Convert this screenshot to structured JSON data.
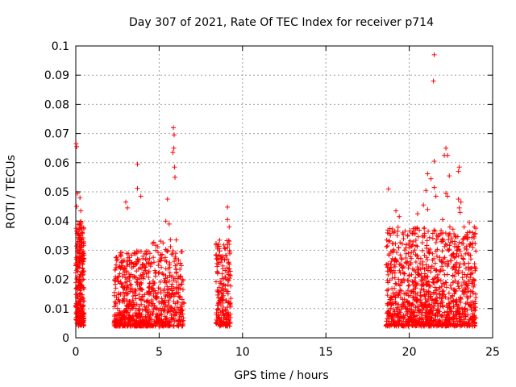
{
  "chart_data": {
    "type": "scatter",
    "title": "Day 307 of 2021, Rate Of TEC Index for receiver p714",
    "xlabel": "GPS time / hours",
    "ylabel": "ROTI / TECUs",
    "xlim": [
      0,
      25
    ],
    "ylim": [
      0,
      0.1
    ],
    "x_ticks": [
      0,
      5,
      10,
      15,
      20,
      25
    ],
    "y_ticks": [
      0,
      0.01,
      0.02,
      0.03,
      0.04,
      0.05,
      0.06,
      0.07,
      0.08,
      0.09,
      0.1
    ],
    "x_tick_labels": [
      "0",
      "5",
      "10",
      "15",
      "20",
      "25"
    ],
    "y_tick_labels": [
      "0",
      "0.01",
      "0.02",
      "0.03",
      "0.04",
      "0.05",
      "0.06",
      "0.07",
      "0.08",
      "0.09",
      "0.1"
    ],
    "grid": true,
    "marker": "+",
    "color": "#ff0000",
    "series": [
      {
        "name": "ROTI",
        "clusters": [
          {
            "x_range": [
              0.0,
              0.5
            ],
            "count": 260,
            "y_base": 0.004,
            "y_spread": 0.036,
            "skew": 1.4
          },
          {
            "x_range": [
              2.3,
              4.6
            ],
            "count": 520,
            "y_base": 0.004,
            "y_spread": 0.026,
            "skew": 2.2
          },
          {
            "x_range": [
              4.6,
              6.5
            ],
            "count": 320,
            "y_base": 0.004,
            "y_spread": 0.03,
            "skew": 2.0
          },
          {
            "x_range": [
              8.4,
              9.3
            ],
            "count": 200,
            "y_base": 0.004,
            "y_spread": 0.03,
            "skew": 1.6
          },
          {
            "x_range": [
              18.6,
              24.0
            ],
            "count": 1150,
            "y_base": 0.004,
            "y_spread": 0.034,
            "skew": 1.8
          }
        ],
        "highlights": [
          {
            "x": 0.02,
            "y": 0.0665
          },
          {
            "x": 0.05,
            "y": 0.0655
          },
          {
            "x": 0.1,
            "y": 0.0495
          },
          {
            "x": 0.25,
            "y": 0.048
          },
          {
            "x": 0.05,
            "y": 0.045
          },
          {
            "x": 0.3,
            "y": 0.0435
          },
          {
            "x": 3.7,
            "y": 0.0595
          },
          {
            "x": 3.7,
            "y": 0.0512
          },
          {
            "x": 3.9,
            "y": 0.0485
          },
          {
            "x": 3.0,
            "y": 0.0465
          },
          {
            "x": 3.1,
            "y": 0.0445
          },
          {
            "x": 5.85,
            "y": 0.072
          },
          {
            "x": 5.9,
            "y": 0.0695
          },
          {
            "x": 5.88,
            "y": 0.065
          },
          {
            "x": 5.82,
            "y": 0.0635
          },
          {
            "x": 5.92,
            "y": 0.0585
          },
          {
            "x": 5.95,
            "y": 0.055
          },
          {
            "x": 5.5,
            "y": 0.0475
          },
          {
            "x": 5.4,
            "y": 0.04
          },
          {
            "x": 5.6,
            "y": 0.039
          },
          {
            "x": 9.1,
            "y": 0.0448
          },
          {
            "x": 9.1,
            "y": 0.0405
          },
          {
            "x": 9.2,
            "y": 0.038
          },
          {
            "x": 18.75,
            "y": 0.051
          },
          {
            "x": 19.2,
            "y": 0.0435
          },
          {
            "x": 19.4,
            "y": 0.0415
          },
          {
            "x": 21.5,
            "y": 0.097
          },
          {
            "x": 21.45,
            "y": 0.088
          },
          {
            "x": 22.2,
            "y": 0.065
          },
          {
            "x": 22.1,
            "y": 0.0625
          },
          {
            "x": 22.3,
            "y": 0.0625
          },
          {
            "x": 21.5,
            "y": 0.0605
          },
          {
            "x": 23.0,
            "y": 0.0585
          },
          {
            "x": 22.95,
            "y": 0.057
          },
          {
            "x": 22.4,
            "y": 0.0555
          },
          {
            "x": 21.1,
            "y": 0.0562
          },
          {
            "x": 21.3,
            "y": 0.0545
          },
          {
            "x": 21.5,
            "y": 0.0515
          },
          {
            "x": 21.0,
            "y": 0.0505
          },
          {
            "x": 21.6,
            "y": 0.0485
          },
          {
            "x": 22.2,
            "y": 0.0495
          },
          {
            "x": 22.3,
            "y": 0.0485
          },
          {
            "x": 22.95,
            "y": 0.0475
          },
          {
            "x": 23.1,
            "y": 0.0465
          },
          {
            "x": 23.0,
            "y": 0.0445
          },
          {
            "x": 23.05,
            "y": 0.043
          },
          {
            "x": 20.85,
            "y": 0.0455
          },
          {
            "x": 21.1,
            "y": 0.044
          },
          {
            "x": 20.5,
            "y": 0.0425
          },
          {
            "x": 23.6,
            "y": 0.0395
          },
          {
            "x": 23.9,
            "y": 0.038
          },
          {
            "x": 23.8,
            "y": 0.036
          },
          {
            "x": 23.5,
            "y": 0.0345
          },
          {
            "x": 22.0,
            "y": 0.0405
          },
          {
            "x": 23.9,
            "y": 0.0355
          }
        ]
      }
    ]
  }
}
